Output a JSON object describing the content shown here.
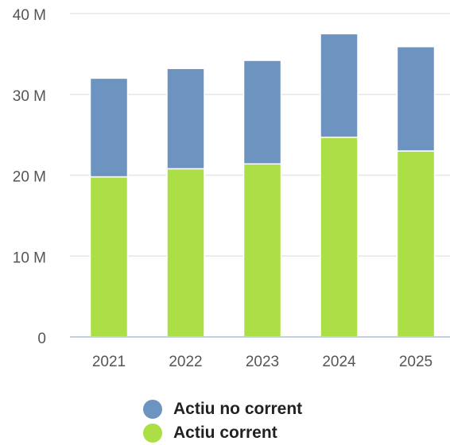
{
  "chart_data": {
    "type": "bar",
    "stacked": true,
    "categories": [
      "2021",
      "2022",
      "2023",
      "2024",
      "2025"
    ],
    "series": [
      {
        "name": "Actiu corrent",
        "color": "#acdf45",
        "values": [
          19.8,
          20.8,
          21.4,
          24.7,
          23.0
        ]
      },
      {
        "name": "Actiu no corrent",
        "color": "#6d93c1",
        "values": [
          12.2,
          12.4,
          12.8,
          12.8,
          12.9
        ]
      }
    ],
    "ylim": [
      0,
      40
    ],
    "y_ticks": [
      0,
      10,
      20,
      30,
      40
    ],
    "y_tick_labels": [
      "0",
      "10 M",
      "20 M",
      "30 M",
      "40 M"
    ],
    "grid": true,
    "legend_position": "bottom"
  },
  "legend": [
    {
      "label": "Actiu no corrent",
      "color": "#6d93c1"
    },
    {
      "label": "Actiu corrent",
      "color": "#acdf45"
    }
  ]
}
